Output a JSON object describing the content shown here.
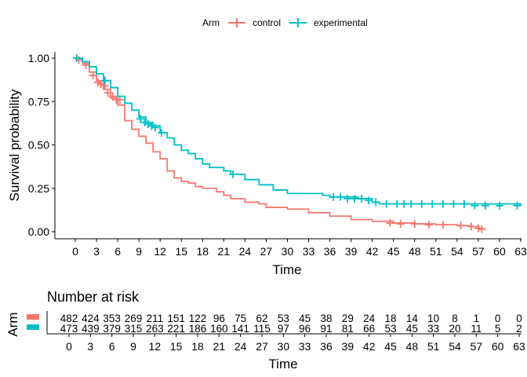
{
  "chart_data": {
    "type": "line",
    "subtype": "kaplan-meier",
    "title": "",
    "xlabel": "Time",
    "ylabel": "Survival probability",
    "xlim": [
      -1.5,
      63
    ],
    "ylim": [
      0,
      1
    ],
    "x_ticks": [
      0,
      3,
      6,
      9,
      12,
      15,
      18,
      21,
      24,
      27,
      30,
      33,
      36,
      39,
      42,
      45,
      48,
      51,
      54,
      57,
      60,
      63
    ],
    "y_ticks": [
      0.0,
      0.25,
      0.5,
      0.75,
      1.0
    ],
    "y_tick_labels": [
      "0.00",
      "0.25",
      "0.50",
      "0.75",
      "1.00"
    ],
    "grid": false,
    "legend": {
      "title": "Arm",
      "position": "top",
      "entries": [
        "control",
        "experimental"
      ]
    },
    "colors": {
      "control": "#F8766D",
      "experimental": "#00BFC4"
    },
    "series": [
      {
        "name": "control",
        "points": [
          [
            0,
            1.0
          ],
          [
            1,
            0.97
          ],
          [
            2,
            0.92
          ],
          [
            3,
            0.87
          ],
          [
            4,
            0.82
          ],
          [
            5,
            0.77
          ],
          [
            6,
            0.73
          ],
          [
            7,
            0.64
          ],
          [
            8,
            0.59
          ],
          [
            9,
            0.55
          ],
          [
            10,
            0.51
          ],
          [
            11,
            0.46
          ],
          [
            12,
            0.42
          ],
          [
            13,
            0.35
          ],
          [
            14,
            0.31
          ],
          [
            15,
            0.29
          ],
          [
            16,
            0.28
          ],
          [
            17,
            0.26
          ],
          [
            18,
            0.25
          ],
          [
            20,
            0.23
          ],
          [
            21,
            0.21
          ],
          [
            22,
            0.19
          ],
          [
            24,
            0.17
          ],
          [
            26,
            0.16
          ],
          [
            27,
            0.14
          ],
          [
            30,
            0.13
          ],
          [
            33,
            0.11
          ],
          [
            36,
            0.09
          ],
          [
            39,
            0.07
          ],
          [
            42,
            0.06
          ],
          [
            45,
            0.05
          ],
          [
            48,
            0.045
          ],
          [
            51,
            0.04
          ],
          [
            54,
            0.035
          ],
          [
            56,
            0.03
          ],
          [
            57,
            0.015
          ],
          [
            58,
            0.015
          ]
        ],
        "censored": [
          [
            0.5,
            0.99
          ],
          [
            1.5,
            0.96
          ],
          [
            2.5,
            0.9
          ],
          [
            3.2,
            0.86
          ],
          [
            3.6,
            0.85
          ],
          [
            4.2,
            0.84
          ],
          [
            4.6,
            0.8
          ],
          [
            5.3,
            0.78
          ],
          [
            5.8,
            0.76
          ],
          [
            6.3,
            0.76
          ],
          [
            44.5,
            0.05
          ],
          [
            46,
            0.045
          ],
          [
            48,
            0.045
          ],
          [
            50,
            0.04
          ],
          [
            52,
            0.04
          ],
          [
            54.5,
            0.035
          ],
          [
            56,
            0.03
          ],
          [
            57,
            0.02
          ],
          [
            57.5,
            0.015
          ]
        ]
      },
      {
        "name": "experimental",
        "points": [
          [
            0,
            1.0
          ],
          [
            1,
            0.98
          ],
          [
            2,
            0.95
          ],
          [
            3,
            0.91
          ],
          [
            4,
            0.87
          ],
          [
            5,
            0.83
          ],
          [
            6,
            0.78
          ],
          [
            7,
            0.74
          ],
          [
            8,
            0.7
          ],
          [
            9,
            0.66
          ],
          [
            10,
            0.63
          ],
          [
            11,
            0.61
          ],
          [
            12,
            0.57
          ],
          [
            13,
            0.54
          ],
          [
            14,
            0.5
          ],
          [
            15,
            0.47
          ],
          [
            16,
            0.45
          ],
          [
            17,
            0.42
          ],
          [
            18,
            0.39
          ],
          [
            19,
            0.37
          ],
          [
            21,
            0.35
          ],
          [
            22,
            0.33
          ],
          [
            24,
            0.3
          ],
          [
            26,
            0.27
          ],
          [
            28,
            0.24
          ],
          [
            30,
            0.22
          ],
          [
            33,
            0.22
          ],
          [
            35,
            0.21
          ],
          [
            36,
            0.2
          ],
          [
            40,
            0.19
          ],
          [
            42,
            0.17
          ],
          [
            43,
            0.16
          ],
          [
            45,
            0.16
          ],
          [
            63,
            0.15
          ]
        ],
        "censored": [
          [
            0.2,
            1.0
          ],
          [
            4.2,
            0.87
          ],
          [
            9.2,
            0.65
          ],
          [
            9.8,
            0.63
          ],
          [
            10.3,
            0.62
          ],
          [
            10.8,
            0.61
          ],
          [
            11.3,
            0.6
          ],
          [
            12.2,
            0.57
          ],
          [
            22.3,
            0.33
          ],
          [
            36.5,
            0.2
          ],
          [
            37.5,
            0.2
          ],
          [
            38.5,
            0.19
          ],
          [
            39.5,
            0.19
          ],
          [
            40.5,
            0.19
          ],
          [
            41.5,
            0.18
          ],
          [
            42.5,
            0.17
          ],
          [
            44,
            0.16
          ],
          [
            45.5,
            0.16
          ],
          [
            46.5,
            0.16
          ],
          [
            47.5,
            0.16
          ],
          [
            49,
            0.16
          ],
          [
            50.5,
            0.16
          ],
          [
            52,
            0.16
          ],
          [
            53.5,
            0.16
          ],
          [
            55,
            0.16
          ],
          [
            56.5,
            0.15
          ],
          [
            58,
            0.15
          ],
          [
            60,
            0.15
          ],
          [
            62.5,
            0.15
          ]
        ]
      }
    ]
  },
  "legend_label": "Arm",
  "risk_table": {
    "title": "Number at risk",
    "ylabel": "Arm",
    "xlabel": "Time",
    "times": [
      0,
      3,
      6,
      9,
      12,
      15,
      18,
      21,
      24,
      27,
      30,
      33,
      36,
      39,
      42,
      45,
      48,
      51,
      54,
      57,
      60,
      63
    ],
    "rows": [
      {
        "name": "control",
        "values": [
          "482",
          "424",
          "353",
          "269",
          "211",
          "151",
          "122",
          "96",
          "75",
          "62",
          "53",
          "45",
          "38",
          "29",
          "24",
          "18",
          "14",
          "10",
          "8",
          "1",
          "0",
          "0"
        ]
      },
      {
        "name": "experimental",
        "values": [
          "473",
          "439",
          "379",
          "315",
          "263",
          "221",
          "186",
          "160",
          "141",
          "115",
          "97",
          "96",
          "91",
          "81",
          "66",
          "53",
          "45",
          "33",
          "20",
          "11",
          "5",
          "2"
        ]
      }
    ]
  }
}
